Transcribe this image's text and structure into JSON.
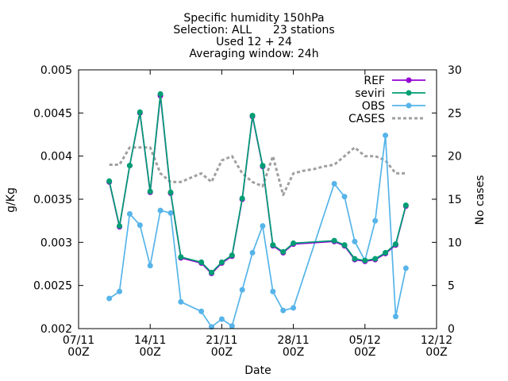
{
  "chart_data": {
    "type": "line",
    "title_lines": [
      "Specific humidity 150hPa",
      "Selection: ALL      23 stations",
      "Used 12 + 24",
      "Averaging window: 24h"
    ],
    "xlabel": "Date",
    "ylabel": "g/Kg",
    "y2label": "No cases",
    "xlim": [
      "2013-11-07T00",
      "2013-12-12T00"
    ],
    "ylim": [
      0.002,
      0.005
    ],
    "y2lim": [
      0,
      30
    ],
    "x_ticks": [
      {
        "value": "2013-11-07T00",
        "line1": "07/11",
        "line2": "00Z"
      },
      {
        "value": "2013-11-14T00",
        "line1": "14/11",
        "line2": "00Z"
      },
      {
        "value": "2013-11-21T00",
        "line1": "21/11",
        "line2": "00Z"
      },
      {
        "value": "2013-11-28T00",
        "line1": "28/11",
        "line2": "00Z"
      },
      {
        "value": "2013-12-05T00",
        "line1": "05/12",
        "line2": "00Z"
      },
      {
        "value": "2013-12-12T00",
        "line1": "12/12",
        "line2": "00Z"
      }
    ],
    "y_ticks": [
      "0.002",
      "0.0025",
      "0.003",
      "0.0035",
      "0.004",
      "0.0045",
      "0.005"
    ],
    "y2_ticks": [
      "0",
      "5",
      "10",
      "15",
      "20",
      "25",
      "30"
    ],
    "grid": false,
    "legend_position": "top-right",
    "series": [
      {
        "name": "REF",
        "color": "#9400d3",
        "axis": "y",
        "dash": "",
        "marker": "circle",
        "x": [
          "2013-11-10T00",
          "2013-11-11T00",
          "2013-11-12T00",
          "2013-11-13T00",
          "2013-11-14T00",
          "2013-11-15T00",
          "2013-11-16T00",
          "2013-11-17T00",
          "2013-11-19T00",
          "2013-11-20T00",
          "2013-11-21T00",
          "2013-11-22T00",
          "2013-11-23T00",
          "2013-11-24T00",
          "2013-11-25T00",
          "2013-11-26T00",
          "2013-11-27T00",
          "2013-11-28T00",
          "2013-12-02T00",
          "2013-12-03T00",
          "2013-12-04T00",
          "2013-12-05T00",
          "2013-12-06T00",
          "2013-12-07T00",
          "2013-12-08T00",
          "2013-12-09T00"
        ],
        "values": [
          0.0037,
          0.00318,
          0.00389,
          0.0045,
          0.00358,
          0.0047,
          0.00357,
          0.00282,
          0.00276,
          0.00264,
          0.00276,
          0.00284,
          0.0035,
          0.00446,
          0.00388,
          0.00296,
          0.00288,
          0.00298,
          0.00301,
          0.00296,
          0.0028,
          0.00278,
          0.0028,
          0.00287,
          0.00297,
          0.00342
        ]
      },
      {
        "name": "seviri",
        "color": "#009e73",
        "axis": "y",
        "dash": "",
        "marker": "circle",
        "x": [
          "2013-11-10T00",
          "2013-11-11T00",
          "2013-11-12T00",
          "2013-11-13T00",
          "2013-11-14T00",
          "2013-11-15T00",
          "2013-11-16T00",
          "2013-11-17T00",
          "2013-11-19T00",
          "2013-11-20T00",
          "2013-11-21T00",
          "2013-11-22T00",
          "2013-11-23T00",
          "2013-11-24T00",
          "2013-11-25T00",
          "2013-11-26T00",
          "2013-11-27T00",
          "2013-11-28T00",
          "2013-12-02T00",
          "2013-12-03T00",
          "2013-12-04T00",
          "2013-12-05T00",
          "2013-12-06T00",
          "2013-12-07T00",
          "2013-12-08T00",
          "2013-12-09T00"
        ],
        "values": [
          0.00371,
          0.00319,
          0.00389,
          0.00451,
          0.00359,
          0.00472,
          0.00358,
          0.00283,
          0.00277,
          0.00265,
          0.00277,
          0.00285,
          0.00351,
          0.00447,
          0.00389,
          0.00297,
          0.00289,
          0.00299,
          0.00302,
          0.00297,
          0.00281,
          0.00279,
          0.00281,
          0.00288,
          0.00298,
          0.00343
        ]
      },
      {
        "name": "OBS",
        "color": "#56b4e9",
        "axis": "y",
        "dash": "",
        "marker": "circle",
        "x": [
          "2013-11-10T00",
          "2013-11-11T00",
          "2013-11-12T00",
          "2013-11-13T00",
          "2013-11-14T00",
          "2013-11-15T00",
          "2013-11-16T00",
          "2013-11-17T00",
          "2013-11-19T00",
          "2013-11-20T00",
          "2013-11-21T00",
          "2013-11-22T00",
          "2013-11-23T00",
          "2013-11-24T00",
          "2013-11-25T00",
          "2013-11-26T00",
          "2013-11-27T00",
          "2013-11-28T00",
          "2013-12-02T00",
          "2013-12-03T00",
          "2013-12-04T00",
          "2013-12-05T00",
          "2013-12-06T00",
          "2013-12-07T00",
          "2013-12-08T00",
          "2013-12-09T00"
        ],
        "values": [
          0.00235,
          0.00243,
          0.00333,
          0.0032,
          0.00273,
          0.00337,
          0.00334,
          0.00231,
          0.0022,
          0.00202,
          0.00211,
          0.00203,
          0.00245,
          0.00288,
          0.00319,
          0.00243,
          0.00221,
          0.00224,
          0.00368,
          0.00353,
          0.00301,
          0.00279,
          0.00325,
          0.00424,
          0.00214,
          0.0027
        ]
      },
      {
        "name": "CASES",
        "color": "#a0a0a0",
        "axis": "y2",
        "dash": "4,3",
        "marker": "none",
        "x": [
          "2013-11-10T00",
          "2013-11-11T00",
          "2013-11-12T00",
          "2013-11-13T00",
          "2013-11-14T00",
          "2013-11-15T00",
          "2013-11-16T00",
          "2013-11-17T00",
          "2013-11-18T00",
          "2013-11-19T00",
          "2013-11-20T00",
          "2013-11-21T00",
          "2013-11-22T00",
          "2013-11-23T00",
          "2013-11-24T00",
          "2013-11-25T00",
          "2013-11-26T00",
          "2013-11-27T00",
          "2013-11-28T00",
          "2013-11-29T00",
          "2013-11-30T00",
          "2013-12-01T00",
          "2013-12-02T00",
          "2013-12-03T00",
          "2013-12-04T00",
          "2013-12-05T00",
          "2013-12-06T00",
          "2013-12-07T00",
          "2013-12-08T00",
          "2013-12-09T00"
        ],
        "values": [
          19,
          19,
          21,
          21,
          21,
          18,
          17,
          17,
          17.5,
          18,
          17,
          19.5,
          20,
          18,
          17,
          16.5,
          20,
          15.5,
          18,
          18.3,
          18.5,
          18.8,
          19,
          20,
          21,
          20,
          20,
          19.5,
          18,
          18
        ]
      }
    ]
  }
}
